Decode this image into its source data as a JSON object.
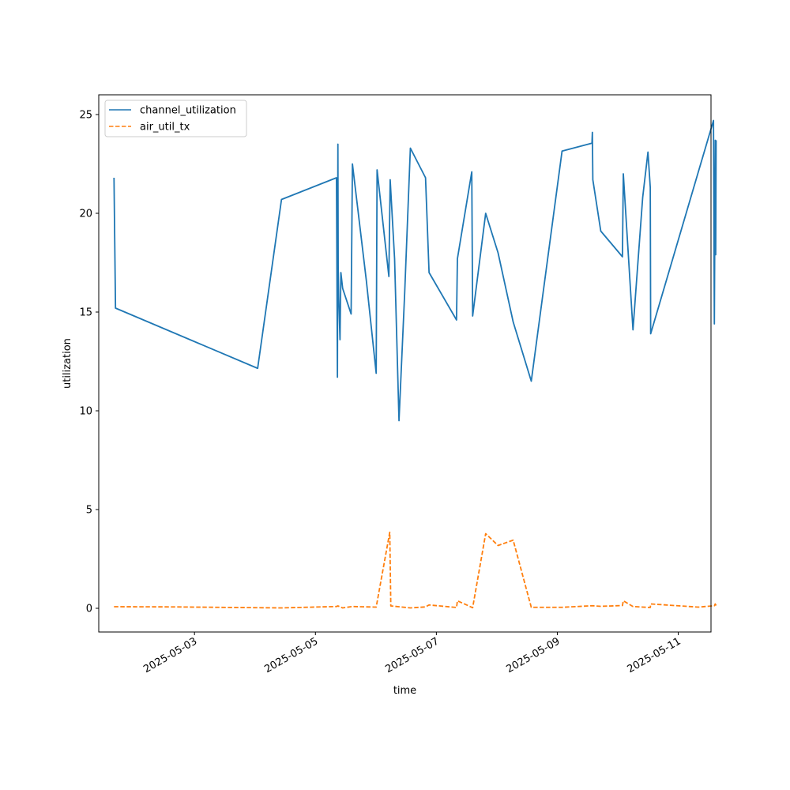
{
  "chart_data": {
    "type": "line",
    "title": "",
    "xlabel": "time",
    "ylabel": "utilization",
    "xlim": [
      "2025-05-01T10:00",
      "2025-05-11T13:00"
    ],
    "ylim": [
      -1.2,
      26
    ],
    "xticks": [
      "2025-05-03",
      "2025-05-05",
      "2025-05-07",
      "2025-05-09",
      "2025-05-11"
    ],
    "yticks": [
      0,
      5,
      10,
      15,
      20,
      25
    ],
    "grid": false,
    "legend": {
      "position": "upper-left"
    },
    "series": [
      {
        "name": "channel_utilization",
        "color": "#1f77b4",
        "style": "solid",
        "points": [
          [
            "2025-05-01T16:03",
            21.8
          ],
          [
            "2025-05-01T16:39",
            15.2
          ],
          [
            "2025-05-04T01:04",
            12.15
          ],
          [
            "2025-05-04T10:32",
            20.7
          ],
          [
            "2025-05-05T08:21",
            21.8
          ],
          [
            "2025-05-05T08:32",
            17.0
          ],
          [
            "2025-05-05T08:44",
            11.7
          ],
          [
            "2025-05-05T08:55",
            23.5
          ],
          [
            "2025-05-05T09:02",
            17.3
          ],
          [
            "2025-05-05T09:14",
            15.8
          ],
          [
            "2025-05-05T09:45",
            13.6
          ],
          [
            "2025-05-05T10:06",
            17.0
          ],
          [
            "2025-05-05T10:48",
            16.2
          ],
          [
            "2025-05-05T14:10",
            14.9
          ],
          [
            "2025-05-05T14:41",
            22.5
          ],
          [
            "2025-05-05T20:12",
            16.6
          ],
          [
            "2025-05-06T00:07",
            11.9
          ],
          [
            "2025-05-06T00:28",
            22.2
          ],
          [
            "2025-05-06T05:09",
            16.8
          ],
          [
            "2025-05-06T05:40",
            21.7
          ],
          [
            "2025-05-06T07:25",
            17.7
          ],
          [
            "2025-05-06T09:10",
            9.5
          ],
          [
            "2025-05-06T11:26",
            16.0
          ],
          [
            "2025-05-06T13:41",
            23.3
          ],
          [
            "2025-05-06T19:42",
            21.8
          ],
          [
            "2025-05-06T21:06",
            17.0
          ],
          [
            "2025-05-07T08:00",
            14.6
          ],
          [
            "2025-05-07T08:21",
            17.7
          ],
          [
            "2025-05-07T14:03",
            22.1
          ],
          [
            "2025-05-07T14:24",
            14.8
          ],
          [
            "2025-05-07T19:34",
            20.0
          ],
          [
            "2025-05-08T00:29",
            18.0
          ],
          [
            "2025-05-08T06:29",
            14.5
          ],
          [
            "2025-05-08T13:40",
            11.5
          ],
          [
            "2025-05-09T01:53",
            23.15
          ],
          [
            "2025-05-09T13:45",
            23.55
          ],
          [
            "2025-05-09T13:55",
            24.1
          ],
          [
            "2025-05-09T14:06",
            21.7
          ],
          [
            "2025-05-09T17:15",
            19.1
          ],
          [
            "2025-05-10T01:51",
            17.8
          ],
          [
            "2025-05-10T02:12",
            22.0
          ],
          [
            "2025-05-10T06:02",
            14.1
          ],
          [
            "2025-05-10T09:53",
            20.8
          ],
          [
            "2025-05-10T11:59",
            23.1
          ],
          [
            "2025-05-10T12:54",
            21.3
          ],
          [
            "2025-05-10T13:03",
            13.9
          ],
          [
            "2025-05-11T13:59",
            24.7
          ],
          [
            "2025-05-11T14:20",
            14.4
          ],
          [
            "2025-05-11T14:41",
            23.7
          ],
          [
            "2025-05-11T14:52",
            17.9
          ],
          [
            "2025-05-11T15:02",
            23.7
          ]
        ]
      },
      {
        "name": "air_util_tx",
        "color": "#ff7f0e",
        "style": "dashed",
        "points": [
          [
            "2025-05-01T16:03",
            0.08
          ],
          [
            "2025-05-02T16:00",
            0.07
          ],
          [
            "2025-05-04T10:32",
            0.02
          ],
          [
            "2025-05-05T08:21",
            0.09
          ],
          [
            "2025-05-05T08:55",
            0.12
          ],
          [
            "2025-05-05T10:48",
            0.02
          ],
          [
            "2025-05-05T14:41",
            0.09
          ],
          [
            "2025-05-06T00:07",
            0.06
          ],
          [
            "2025-05-06T05:30",
            3.85
          ],
          [
            "2025-05-06T05:55",
            0.12
          ],
          [
            "2025-05-06T13:41",
            0.02
          ],
          [
            "2025-05-06T19:42",
            0.07
          ],
          [
            "2025-05-06T21:06",
            0.17
          ],
          [
            "2025-05-07T08:00",
            0.04
          ],
          [
            "2025-05-07T08:21",
            0.38
          ],
          [
            "2025-05-07T14:24",
            0.03
          ],
          [
            "2025-05-07T19:34",
            3.78
          ],
          [
            "2025-05-08T00:29",
            3.18
          ],
          [
            "2025-05-08T06:29",
            3.45
          ],
          [
            "2025-05-08T13:40",
            0.05
          ],
          [
            "2025-05-09T01:53",
            0.05
          ],
          [
            "2025-05-09T13:55",
            0.13
          ],
          [
            "2025-05-09T17:15",
            0.1
          ],
          [
            "2025-05-10T01:51",
            0.14
          ],
          [
            "2025-05-10T02:12",
            0.38
          ],
          [
            "2025-05-10T06:02",
            0.09
          ],
          [
            "2025-05-10T12:54",
            0.04
          ],
          [
            "2025-05-10T13:03",
            0.22
          ],
          [
            "2025-05-11T08:00",
            0.06
          ],
          [
            "2025-05-11T14:20",
            0.13
          ],
          [
            "2025-05-11T14:41",
            0.22
          ],
          [
            "2025-05-11T15:02",
            0.14
          ]
        ]
      }
    ]
  }
}
